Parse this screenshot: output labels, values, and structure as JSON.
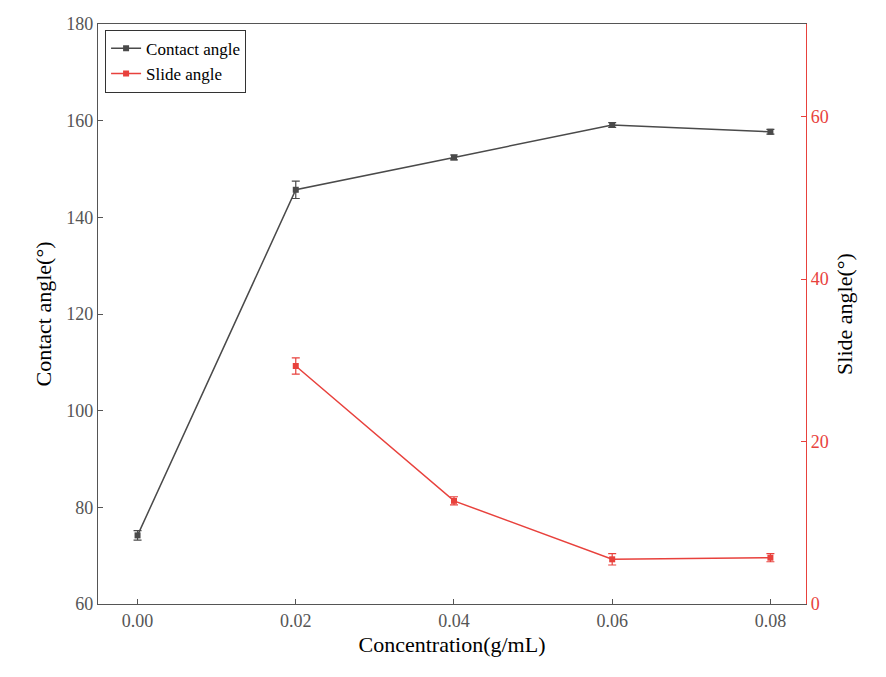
{
  "chart_data": {
    "type": "line",
    "x_label": "Concentration(g/mL)",
    "y_label": "Contact angle(°)",
    "y2_label": "Slide angle(°)",
    "x": [
      0,
      0.02,
      0.04,
      0.06,
      0.08
    ],
    "series": [
      {
        "name": "Contact angle",
        "color": "#4a4a4a",
        "marker": "square",
        "values": [
          74.2,
          145.7,
          152.4,
          159.1,
          157.7
        ],
        "error": [
          1.0,
          1.8,
          0.5,
          0.5,
          0.5
        ]
      },
      {
        "name": "Slide angle",
        "color": "#e8413c",
        "marker": "square",
        "axis": "y2",
        "values": [
          null,
          29.3,
          12.7,
          5.5,
          5.7
        ],
        "error": [
          null,
          1.0,
          0.5,
          0.7,
          0.5
        ]
      }
    ],
    "xlim": [
      -0.005,
      0.0845
    ],
    "xticks": [
      {
        "value": 0,
        "label": "0.00"
      },
      {
        "value": 0.02,
        "label": "0.02"
      },
      {
        "value": 0.04,
        "label": "0.04"
      },
      {
        "value": 0.06,
        "label": "0.06"
      },
      {
        "value": 0.08,
        "label": "0.08"
      }
    ],
    "ylim": [
      60,
      180
    ],
    "yticks": [
      60,
      80,
      100,
      120,
      140,
      160,
      180
    ],
    "y2lim": [
      0,
      71.4
    ],
    "y2ticks": [
      0,
      20,
      40,
      60
    ],
    "legend": "upper left",
    "grid": false
  }
}
